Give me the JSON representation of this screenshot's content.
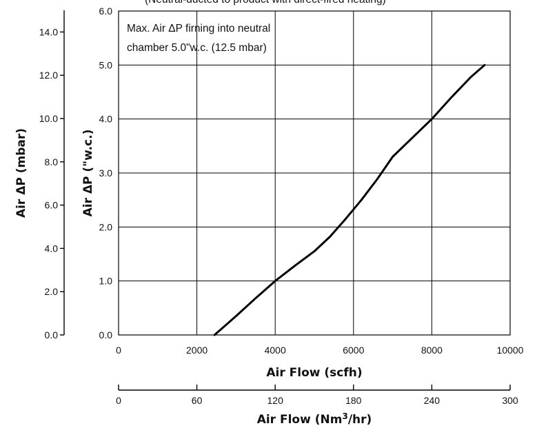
{
  "chart_data": {
    "type": "line",
    "top_text": "(Neutral-ducted to product with direct-fired heating)",
    "annotation_line1": "Max. Air ΔP firning into neutral",
    "annotation_line2": "chamber 5.0\"w.c. (12.5 mbar)",
    "xlabel": "Air Flow (scfh)",
    "x2label_pre": "Air Flow (Nm",
    "x2label_sup": "3",
    "x2label_post": "/hr)",
    "ylabel": "Air ΔP (\"w.c.)",
    "y2label": "Air ΔP  (mbar)",
    "xlim": [
      0,
      10000
    ],
    "ylim": [
      0,
      6.0
    ],
    "x2lim": [
      0,
      300
    ],
    "y2lim": [
      0,
      15
    ],
    "x_ticks": [
      0,
      2000,
      4000,
      6000,
      8000,
      10000
    ],
    "y_ticks": [
      "0.0",
      "1.0",
      "2.0",
      "3.0",
      "4.0",
      "5.0",
      "6.0"
    ],
    "x2_ticks": [
      0,
      60,
      120,
      180,
      240,
      300
    ],
    "y2_ticks": [
      "0.0",
      "2.0",
      "4.0",
      "6.0",
      "8.0",
      "10.0",
      "12.0",
      "14.0"
    ],
    "grid": true,
    "series": [
      {
        "x": [
          2450,
          3000,
          3500,
          4000,
          4500,
          5000,
          5400,
          5800,
          6200,
          6600,
          7000,
          7500,
          8000,
          8500,
          9000,
          9350
        ],
        "values": [
          0.0,
          0.35,
          0.68,
          1.0,
          1.28,
          1.55,
          1.82,
          2.15,
          2.5,
          2.88,
          3.3,
          3.65,
          4.0,
          4.4,
          4.78,
          5.0
        ]
      }
    ]
  }
}
